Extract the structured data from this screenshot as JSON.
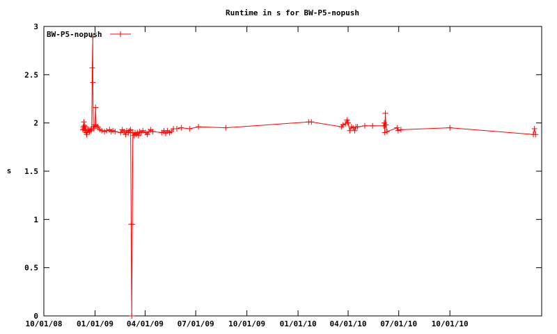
{
  "chart_data": {
    "type": "line",
    "title": "Runtime in s for BW-P5-nopush",
    "xlabel": "",
    "ylabel": "s",
    "xlim": [
      "2008-10-01",
      "2011-03-15"
    ],
    "ylim": [
      0,
      3
    ],
    "x_ticks": [
      "2008-10-01",
      "2009-01-01",
      "2009-04-01",
      "2009-07-01",
      "2009-10-01",
      "2010-01-01",
      "2010-04-01",
      "2010-07-01",
      "2010-10-01"
    ],
    "x_tick_labels": [
      "10/01/08",
      "01/01/09",
      "04/01/09",
      "07/01/09",
      "10/01/09",
      "01/01/10",
      "04/01/10",
      "07/01/10",
      "10/01/10"
    ],
    "y_ticks": [
      0,
      0.5,
      1,
      1.5,
      2,
      2.5,
      3
    ],
    "y_tick_labels": [
      "0",
      "0.5",
      "1",
      "1.5",
      "2",
      "2.5",
      "3"
    ],
    "grid": false,
    "legend_position": "top-left",
    "series": [
      {
        "name": "BW-P5-nopush",
        "color": "#ff0000",
        "marker": "plus",
        "points": [
          [
            "2008-12-10",
            1.93
          ],
          [
            "2008-12-11",
            1.96
          ],
          [
            "2008-12-12",
            2.01
          ],
          [
            "2008-12-12",
            1.94
          ],
          [
            "2008-12-13",
            1.97
          ],
          [
            "2008-12-14",
            1.92
          ],
          [
            "2008-12-15",
            1.96
          ],
          [
            "2008-12-16",
            1.9
          ],
          [
            "2008-12-17",
            1.88
          ],
          [
            "2008-12-19",
            1.92
          ],
          [
            "2008-12-20",
            1.93
          ],
          [
            "2008-12-22",
            1.91
          ],
          [
            "2008-12-23",
            1.93
          ],
          [
            "2008-12-25",
            1.92
          ],
          [
            "2008-12-26",
            1.94
          ],
          [
            "2008-12-27",
            2.57
          ],
          [
            "2008-12-28",
            2.89
          ],
          [
            "2008-12-28",
            2.42
          ],
          [
            "2008-12-29",
            1.96
          ],
          [
            "2008-12-30",
            1.94
          ],
          [
            "2009-01-01",
            1.98
          ],
          [
            "2009-01-02",
            2.16
          ],
          [
            "2009-01-03",
            1.97
          ],
          [
            "2009-01-06",
            1.96
          ],
          [
            "2009-01-10",
            1.93
          ],
          [
            "2009-01-13",
            1.92
          ],
          [
            "2009-01-18",
            1.91
          ],
          [
            "2009-01-22",
            1.92
          ],
          [
            "2009-01-27",
            1.93
          ],
          [
            "2009-01-30",
            1.91
          ],
          [
            "2009-02-02",
            1.92
          ],
          [
            "2009-02-06",
            1.91
          ],
          [
            "2009-02-16",
            1.9
          ],
          [
            "2009-02-19",
            1.93
          ],
          [
            "2009-02-22",
            1.91
          ],
          [
            "2009-02-25",
            1.88
          ],
          [
            "2009-02-27",
            1.92
          ],
          [
            "2009-03-02",
            1.9
          ],
          [
            "2009-03-04",
            1.92
          ],
          [
            "2009-03-06",
            1.93
          ],
          [
            "2009-03-07",
            0.95
          ],
          [
            "2009-03-08",
            0.0
          ],
          [
            "2009-03-09",
            0.95
          ],
          [
            "2009-03-10",
            1.9
          ],
          [
            "2009-03-12",
            1.87
          ],
          [
            "2009-03-14",
            1.9
          ],
          [
            "2009-03-16",
            1.88
          ],
          [
            "2009-03-18",
            1.9
          ],
          [
            "2009-03-20",
            1.87
          ],
          [
            "2009-03-22",
            1.91
          ],
          [
            "2009-03-25",
            1.9
          ],
          [
            "2009-03-28",
            1.92
          ],
          [
            "2009-04-02",
            1.9
          ],
          [
            "2009-04-05",
            1.88
          ],
          [
            "2009-04-08",
            1.91
          ],
          [
            "2009-04-11",
            1.93
          ],
          [
            "2009-04-15",
            1.91
          ],
          [
            "2009-05-01",
            1.9
          ],
          [
            "2009-05-05",
            1.92
          ],
          [
            "2009-05-08",
            1.89
          ],
          [
            "2009-05-11",
            1.92
          ],
          [
            "2009-05-15",
            1.9
          ],
          [
            "2009-05-18",
            1.91
          ],
          [
            "2009-05-22",
            1.94
          ],
          [
            "2009-05-28",
            1.94
          ],
          [
            "2009-06-05",
            1.95
          ],
          [
            "2009-06-20",
            1.94
          ],
          [
            "2009-07-06",
            1.96
          ],
          [
            "2009-08-24",
            1.95
          ],
          [
            "2010-01-20",
            2.01
          ],
          [
            "2010-01-25",
            2.01
          ],
          [
            "2010-03-20",
            1.96
          ],
          [
            "2010-03-23",
            1.98
          ],
          [
            "2010-03-27",
            1.99
          ],
          [
            "2010-03-30",
            2.03
          ],
          [
            "2010-04-01",
            2.0
          ],
          [
            "2010-04-04",
            1.92
          ],
          [
            "2010-04-07",
            1.96
          ],
          [
            "2010-04-10",
            1.95
          ],
          [
            "2010-04-13",
            1.92
          ],
          [
            "2010-04-15",
            1.96
          ],
          [
            "2010-04-18",
            1.96
          ],
          [
            "2010-05-01",
            1.97
          ],
          [
            "2010-05-15",
            1.97
          ],
          [
            "2010-06-04",
            1.97
          ],
          [
            "2010-06-05",
            2.0
          ],
          [
            "2010-06-06",
            1.9
          ],
          [
            "2010-06-07",
            2.1
          ],
          [
            "2010-06-08",
            1.98
          ],
          [
            "2010-06-10",
            1.91
          ],
          [
            "2010-06-28",
            1.95
          ],
          [
            "2010-06-30",
            1.92
          ],
          [
            "2010-07-05",
            1.93
          ],
          [
            "2010-10-01",
            1.95
          ],
          [
            "2011-02-28",
            1.88
          ],
          [
            "2011-03-02",
            1.94
          ],
          [
            "2011-03-04",
            1.88
          ]
        ]
      }
    ]
  }
}
